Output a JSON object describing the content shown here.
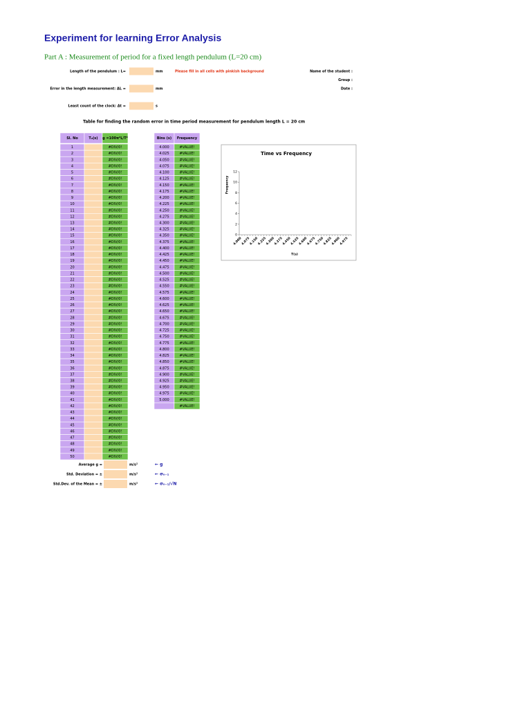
{
  "header": {
    "title": "Experiment for learning  Error  Analysis",
    "subtitle": "Part A : Measurement of period for a fixed length pendulum (L=20 cm)"
  },
  "inputs": [
    {
      "label": "Length of the pendulum : L=",
      "unit": "mm"
    },
    {
      "label": "Error in the length measurement: ΔL =",
      "unit": "mm"
    },
    {
      "label": "Least count of the clock: Δt =",
      "unit": "s"
    }
  ],
  "note": "Please fill in all cells with pinkish background",
  "student": [
    "Name of the student :",
    "Group :",
    "Date :"
  ],
  "table_caption": "Table for finding the random error in time period measurement  for pendulum length  L =  20 cm",
  "table": {
    "headers": [
      "Sl. No",
      "T₀(s)",
      "g =100π²L/T²"
    ],
    "rows": [
      {
        "sl": 1,
        "g": "#DIV/0!"
      },
      {
        "sl": 2,
        "g": "#DIV/0!"
      },
      {
        "sl": 3,
        "g": "#DIV/0!"
      },
      {
        "sl": 4,
        "g": "#DIV/0!"
      },
      {
        "sl": 5,
        "g": "#DIV/0!"
      },
      {
        "sl": 6,
        "g": "#DIV/0!"
      },
      {
        "sl": 7,
        "g": "#DIV/0!"
      },
      {
        "sl": 8,
        "g": "#DIV/0!"
      },
      {
        "sl": 9,
        "g": "#DIV/0!"
      },
      {
        "sl": 10,
        "g": "#DIV/0!"
      },
      {
        "sl": 11,
        "g": "#DIV/0!"
      },
      {
        "sl": 12,
        "g": "#DIV/0!"
      },
      {
        "sl": 13,
        "g": "#DIV/0!"
      },
      {
        "sl": 14,
        "g": "#DIV/0!"
      },
      {
        "sl": 15,
        "g": "#DIV/0!"
      },
      {
        "sl": 16,
        "g": "#DIV/0!"
      },
      {
        "sl": 17,
        "g": "#DIV/0!"
      },
      {
        "sl": 18,
        "g": "#DIV/0!"
      },
      {
        "sl": 19,
        "g": "#DIV/0!"
      },
      {
        "sl": 20,
        "g": "#DIV/0!"
      },
      {
        "sl": 21,
        "g": "#DIV/0!"
      },
      {
        "sl": 22,
        "g": "#DIV/0!"
      },
      {
        "sl": 23,
        "g": "#DIV/0!"
      },
      {
        "sl": 24,
        "g": "#DIV/0!"
      },
      {
        "sl": 25,
        "g": "#DIV/0!"
      },
      {
        "sl": 26,
        "g": "#DIV/0!"
      },
      {
        "sl": 27,
        "g": "#DIV/0!"
      },
      {
        "sl": 28,
        "g": "#DIV/0!"
      },
      {
        "sl": 29,
        "g": "#DIV/0!"
      },
      {
        "sl": 30,
        "g": "#DIV/0!"
      },
      {
        "sl": 31,
        "g": "#DIV/0!"
      },
      {
        "sl": 32,
        "g": "#DIV/0!"
      },
      {
        "sl": 33,
        "g": "#DIV/0!"
      },
      {
        "sl": 34,
        "g": "#DIV/0!"
      },
      {
        "sl": 35,
        "g": "#DIV/0!"
      },
      {
        "sl": 36,
        "g": "#DIV/0!"
      },
      {
        "sl": 37,
        "g": "#DIV/0!"
      },
      {
        "sl": 38,
        "g": "#DIV/0!"
      },
      {
        "sl": 39,
        "g": "#DIV/0!"
      },
      {
        "sl": 40,
        "g": "#DIV/0!"
      },
      {
        "sl": 41,
        "g": "#DIV/0!"
      },
      {
        "sl": 42,
        "g": "#DIV/0!"
      },
      {
        "sl": 43,
        "g": "#DIV/0!"
      },
      {
        "sl": 44,
        "g": "#DIV/0!"
      },
      {
        "sl": 45,
        "g": "#DIV/0!"
      },
      {
        "sl": 46,
        "g": "#DIV/0!"
      },
      {
        "sl": 47,
        "g": "#DIV/0!"
      },
      {
        "sl": 48,
        "g": "#DIV/0!"
      },
      {
        "sl": 49,
        "g": "#DIV/0!"
      },
      {
        "sl": 50,
        "g": "#DIV/0!"
      }
    ]
  },
  "bins": {
    "headers": [
      "Bins (s)",
      "Frequency"
    ],
    "rows": [
      {
        "bin": "4.000",
        "frequency": "#VALUE!"
      },
      {
        "bin": "4.025",
        "frequency": "#VALUE!"
      },
      {
        "bin": "4.050",
        "frequency": "#VALUE!"
      },
      {
        "bin": "4.075",
        "frequency": "#VALUE!"
      },
      {
        "bin": "4.100",
        "frequency": "#VALUE!"
      },
      {
        "bin": "4.125",
        "frequency": "#VALUE!"
      },
      {
        "bin": "4.150",
        "frequency": "#VALUE!"
      },
      {
        "bin": "4.175",
        "frequency": "#VALUE!"
      },
      {
        "bin": "4.200",
        "frequency": "#VALUE!"
      },
      {
        "bin": "4.225",
        "frequency": "#VALUE!"
      },
      {
        "bin": "4.250",
        "frequency": "#VALUE!"
      },
      {
        "bin": "4.275",
        "frequency": "#VALUE!"
      },
      {
        "bin": "4.300",
        "frequency": "#VALUE!"
      },
      {
        "bin": "4.325",
        "frequency": "#VALUE!"
      },
      {
        "bin": "4.350",
        "frequency": "#VALUE!"
      },
      {
        "bin": "4.375",
        "frequency": "#VALUE!"
      },
      {
        "bin": "4.400",
        "frequency": "#VALUE!"
      },
      {
        "bin": "4.425",
        "frequency": "#VALUE!"
      },
      {
        "bin": "4.450",
        "frequency": "#VALUE!"
      },
      {
        "bin": "4.475",
        "frequency": "#VALUE!"
      },
      {
        "bin": "4.500",
        "frequency": "#VALUE!"
      },
      {
        "bin": "4.525",
        "frequency": "#VALUE!"
      },
      {
        "bin": "4.550",
        "frequency": "#VALUE!"
      },
      {
        "bin": "4.575",
        "frequency": "#VALUE!"
      },
      {
        "bin": "4.600",
        "frequency": "#VALUE!"
      },
      {
        "bin": "4.625",
        "frequency": "#VALUE!"
      },
      {
        "bin": "4.650",
        "frequency": "#VALUE!"
      },
      {
        "bin": "4.675",
        "frequency": "#VALUE!"
      },
      {
        "bin": "4.700",
        "frequency": "#VALUE!"
      },
      {
        "bin": "4.725",
        "frequency": "#VALUE!"
      },
      {
        "bin": "4.750",
        "frequency": "#VALUE!"
      },
      {
        "bin": "4.775",
        "frequency": "#VALUE!"
      },
      {
        "bin": "4.800",
        "frequency": "#VALUE!"
      },
      {
        "bin": "4.825",
        "frequency": "#VALUE!"
      },
      {
        "bin": "4.850",
        "frequency": "#VALUE!"
      },
      {
        "bin": "4.875",
        "frequency": "#VALUE!"
      },
      {
        "bin": "4.900",
        "frequency": "#VALUE!"
      },
      {
        "bin": "4.925",
        "frequency": "#VALUE!"
      },
      {
        "bin": "4.950",
        "frequency": "#VALUE!"
      },
      {
        "bin": "4.975",
        "frequency": "#VALUE!"
      },
      {
        "bin": "5.000",
        "frequency": "#VALUE!"
      },
      {
        "frequency": "#VALUE!"
      }
    ]
  },
  "summary": [
    {
      "label": "Average g =",
      "unit": "m/s²",
      "note": "← g"
    },
    {
      "label": "Std. Deviation = ±",
      "unit": "m/s²",
      "note": "← σₙ₋₁"
    },
    {
      "label": "Std.Dev. of the Mean = ±",
      "unit": "m/s²",
      "note": "← σₙ₋₁/√N"
    }
  ],
  "chart": {
    "title": "Time vs Frequency",
    "x_label": "T(s)",
    "y_label": "Frequency",
    "ylim": [
      0,
      12
    ],
    "yticks": [
      0,
      2,
      4,
      6,
      8,
      10,
      12
    ],
    "xtick_labels": [
      "4.000",
      "4.075",
      "4.150",
      "4.225",
      "4.300",
      "4.375",
      "4.450",
      "4.525",
      "4.600",
      "4.675",
      "4.750",
      "4.825",
      "4.900",
      "4.975"
    ]
  }
}
